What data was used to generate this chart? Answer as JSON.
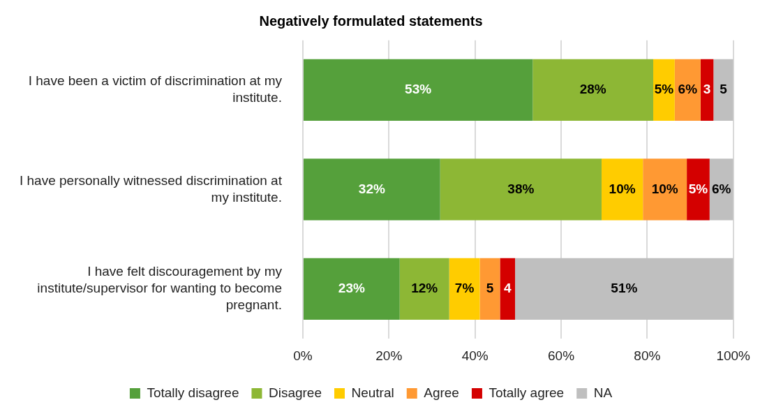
{
  "chart_data": {
    "type": "bar",
    "orientation": "horizontal",
    "stacked": true,
    "title": "Negatively formulated statements",
    "categories": [
      "I have been a victim of discrimination at my institute.",
      "I have personally witnessed discrimination at my institute.",
      "I have felt discouragement by my institute/supervisor for wanting to become pregnant."
    ],
    "series": [
      {
        "name": "Totally disagree",
        "color": "#55a03b",
        "values": [
          53.4,
          31.9,
          22.5
        ],
        "value_labels": [
          "53%",
          "32%",
          "23%"
        ]
      },
      {
        "name": "Disagree",
        "color": "#8db735",
        "values": [
          28.0,
          37.5,
          11.5
        ],
        "value_labels": [
          "28%",
          "38%",
          "12%"
        ]
      },
      {
        "name": "Neutral",
        "color": "#ffcc00",
        "values": [
          5.0,
          9.6,
          7.1
        ],
        "value_labels": [
          "5%",
          "10%",
          "7%"
        ]
      },
      {
        "name": "Agree",
        "color": "#ff9933",
        "values": [
          6.0,
          10.2,
          4.7
        ],
        "value_labels": [
          "6%",
          "10%",
          "5"
        ]
      },
      {
        "name": "Totally agree",
        "color": "#d40000",
        "values": [
          3.0,
          5.3,
          3.5
        ],
        "value_labels": [
          "3",
          "5%",
          "4"
        ]
      },
      {
        "name": "NA",
        "color": "#bfbfbf",
        "values": [
          4.6,
          5.5,
          50.7
        ],
        "value_labels": [
          "5",
          "6%",
          "51%"
        ]
      }
    ],
    "xlim": [
      0,
      100
    ],
    "xticks": [
      {
        "value": 0,
        "label": "0%"
      },
      {
        "value": 20,
        "label": "20%"
      },
      {
        "value": 40,
        "label": "40%"
      },
      {
        "value": 60,
        "label": "60%"
      },
      {
        "value": 80,
        "label": "80%"
      },
      {
        "value": 100,
        "label": "100%"
      }
    ],
    "grid": "x",
    "legend": "bottom"
  }
}
